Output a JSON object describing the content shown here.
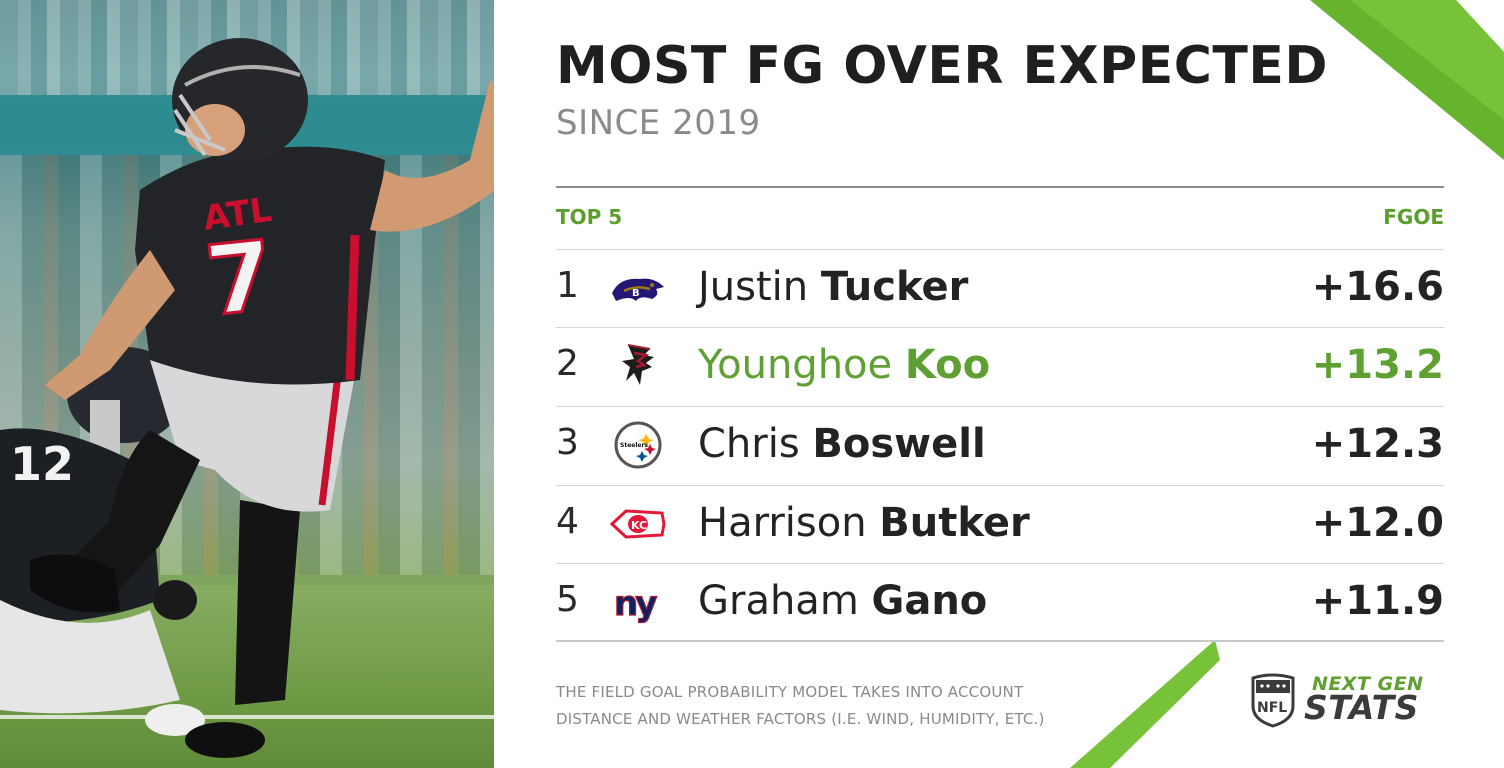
{
  "header": {
    "title": "MOST FG OVER EXPECTED",
    "subtitle": "SINCE 2019"
  },
  "table": {
    "left_header": "TOP 5",
    "right_header": "FGOE",
    "rows": [
      {
        "rank": "1",
        "first": "Justin",
        "last": "Tucker",
        "value": "+16.6",
        "team_icon": "ravens-logo-icon"
      },
      {
        "rank": "2",
        "first": "Younghoe",
        "last": "Koo",
        "value": "+13.2",
        "team_icon": "falcons-logo-icon",
        "highlight": true
      },
      {
        "rank": "3",
        "first": "Chris",
        "last": "Boswell",
        "value": "+12.3",
        "team_icon": "steelers-logo-icon"
      },
      {
        "rank": "4",
        "first": "Harrison",
        "last": "Butker",
        "value": "+12.0",
        "team_icon": "chiefs-logo-icon"
      },
      {
        "rank": "5",
        "first": "Graham",
        "last": "Gano",
        "value": "+11.9",
        "team_icon": "giants-logo-icon"
      }
    ]
  },
  "footnote": {
    "line1": "THE FIELD GOAL PROBABILITY MODEL TAKES INTO ACCOUNT",
    "line2": "DISTANCE AND WEATHER FACTORS (I.E. WIND, HUMIDITY, ETC.)"
  },
  "brand": {
    "top": "NEXT GEN",
    "bottom": "STATS",
    "shield_text": "NFL"
  },
  "photo": {
    "jersey_text": "ATL",
    "jersey_number": "7",
    "holder_number": "12"
  },
  "colors": {
    "accent_green": "#5fa033",
    "heading_green": "#5a9e2c",
    "text_dark": "#232323",
    "text_gray": "#8a8a8a"
  }
}
